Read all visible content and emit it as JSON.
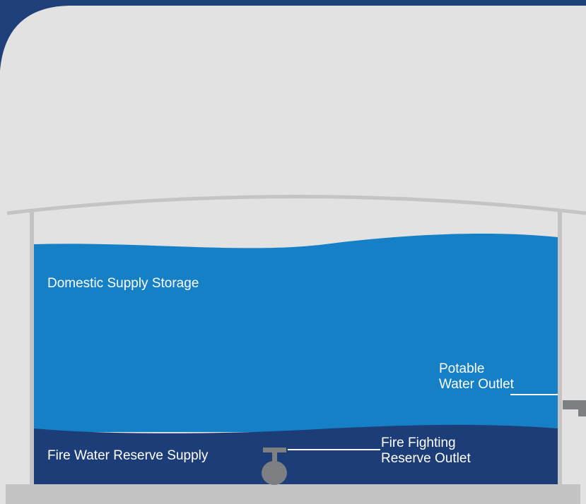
{
  "labels": {
    "domestic_supply_storage": "Domestic Supply Storage",
    "fire_water_reserve_supply": "Fire Water Reserve Supply",
    "potable_outlet_line1": "Potable",
    "potable_outlet_line2": "Water Outlet",
    "fire_outlet_line1": "Fire Fighting",
    "fire_outlet_line2": "Reserve Outlet"
  },
  "colors": {
    "frame_navy": "#1f3f7a",
    "background_grey": "#e2e2e2",
    "tank_structure_grey": "#c4c4c4",
    "domestic_water_blue": "#1580c5",
    "fire_reserve_navy": "#1d3d78",
    "valve_grey": "#7d7f83",
    "label_text": "#ffffff"
  }
}
